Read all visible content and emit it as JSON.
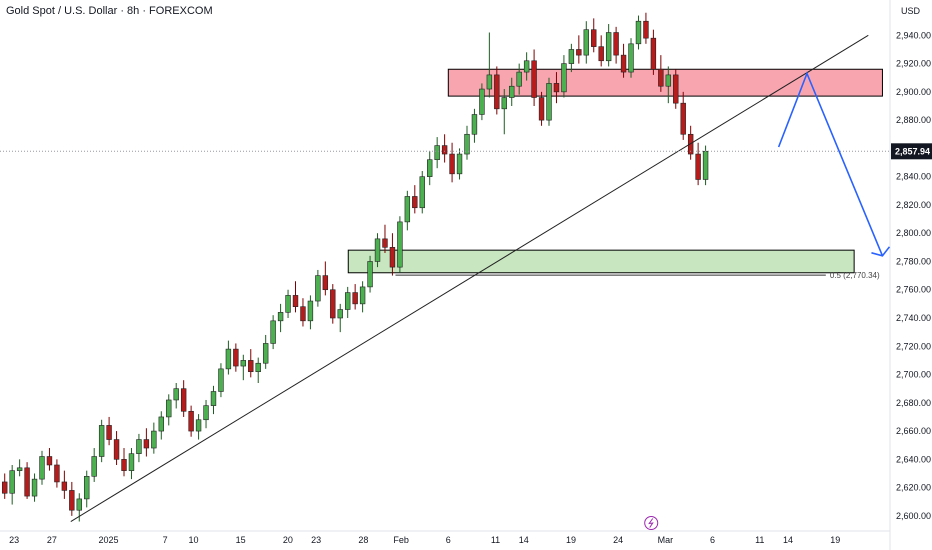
{
  "header": {
    "title": "Gold Spot / U.S. Dollar · 8h · FOREXCOM"
  },
  "price_axis": {
    "currency": "USD"
  },
  "current_price": {
    "label": "2,857.94",
    "value": 2857.94,
    "color": "#131722"
  },
  "colors": {
    "up": "#26a69a",
    "up_fill": "#4caf50",
    "down": "#b71c1c",
    "resistance_fill": "#f8a5b0",
    "support_fill": "#c8e6c0",
    "projection": "#2962ff"
  },
  "fib_label": {
    "text": "0.5 (2,770.34)",
    "value": 2770.34
  },
  "chart_data": {
    "type": "candlestick",
    "y_ticks": [
      "2,940.00",
      "2,920.00",
      "2,900.00",
      "2,880.00",
      "2,860.00",
      "2,840.00",
      "2,820.00",
      "2,800.00",
      "2,780.00",
      "2,760.00",
      "2,740.00",
      "2,720.00",
      "2,700.00",
      "2,680.00",
      "2,660.00",
      "2,640.00",
      "2,620.00",
      "2,600.00"
    ],
    "y_tick_values": [
      2940,
      2920,
      2900,
      2880,
      2860,
      2840,
      2820,
      2800,
      2780,
      2760,
      2740,
      2720,
      2700,
      2680,
      2660,
      2640,
      2620,
      2600
    ],
    "ylim": [
      2590,
      2965
    ],
    "x_ticks": [
      "23",
      "27",
      "2025",
      "7",
      "10",
      "15",
      "20",
      "23",
      "28",
      "Feb",
      "6",
      "11",
      "14",
      "19",
      "24",
      "Mar",
      "6",
      "11",
      "14",
      "19"
    ],
    "x_tick_days": [
      -9,
      -5,
      1,
      7,
      10,
      15,
      20,
      23,
      28,
      32,
      37,
      42,
      45,
      50,
      55,
      60,
      65,
      70,
      73,
      78
    ],
    "date_axis_note": "x values are days relative to 2024-12-31",
    "resistance_zone": {
      "y_low": 2897,
      "y_high": 2916,
      "x_start": 37.0,
      "x_end": 83.0
    },
    "support_zone": {
      "y_low": 2772,
      "y_high": 2788,
      "x_start": 26.4,
      "x_end": 80.0
    },
    "trendline": {
      "x1": -3.0,
      "y1": 2596,
      "x2": 81.5,
      "y2": 2940
    },
    "projection_path": [
      [
        72.0,
        2861
      ],
      [
        75.0,
        2913
      ],
      [
        83.0,
        2784
      ]
    ],
    "candles": [
      [
        2624,
        2630,
        2612,
        2616
      ],
      [
        2616,
        2636,
        2608,
        2632
      ],
      [
        2632,
        2640,
        2628,
        2634
      ],
      [
        2634,
        2638,
        2612,
        2614
      ],
      [
        2614,
        2630,
        2610,
        2626
      ],
      [
        2626,
        2646,
        2622,
        2642
      ],
      [
        2642,
        2648,
        2632,
        2636
      ],
      [
        2636,
        2640,
        2620,
        2624
      ],
      [
        2624,
        2632,
        2612,
        2618
      ],
      [
        2618,
        2624,
        2600,
        2604
      ],
      [
        2604,
        2616,
        2596,
        2612
      ],
      [
        2612,
        2632,
        2606,
        2628
      ],
      [
        2628,
        2648,
        2624,
        2642
      ],
      [
        2642,
        2668,
        2638,
        2664
      ],
      [
        2664,
        2670,
        2650,
        2654
      ],
      [
        2654,
        2660,
        2636,
        2640
      ],
      [
        2640,
        2648,
        2628,
        2632
      ],
      [
        2632,
        2648,
        2626,
        2644
      ],
      [
        2644,
        2658,
        2638,
        2654
      ],
      [
        2654,
        2662,
        2642,
        2648
      ],
      [
        2648,
        2666,
        2644,
        2660
      ],
      [
        2660,
        2674,
        2654,
        2670
      ],
      [
        2670,
        2686,
        2664,
        2682
      ],
      [
        2682,
        2694,
        2676,
        2690
      ],
      [
        2690,
        2696,
        2670,
        2674
      ],
      [
        2674,
        2678,
        2656,
        2660
      ],
      [
        2660,
        2672,
        2654,
        2668
      ],
      [
        2668,
        2682,
        2662,
        2678
      ],
      [
        2678,
        2692,
        2672,
        2688
      ],
      [
        2688,
        2708,
        2684,
        2704
      ],
      [
        2704,
        2724,
        2700,
        2718
      ],
      [
        2718,
        2722,
        2702,
        2706
      ],
      [
        2706,
        2714,
        2696,
        2710
      ],
      [
        2710,
        2718,
        2698,
        2702
      ],
      [
        2702,
        2712,
        2694,
        2708
      ],
      [
        2708,
        2728,
        2704,
        2722
      ],
      [
        2722,
        2742,
        2718,
        2738
      ],
      [
        2738,
        2750,
        2730,
        2744
      ],
      [
        2744,
        2760,
        2740,
        2756
      ],
      [
        2756,
        2766,
        2744,
        2748
      ],
      [
        2748,
        2754,
        2734,
        2738
      ],
      [
        2738,
        2756,
        2732,
        2752
      ],
      [
        2752,
        2774,
        2748,
        2770
      ],
      [
        2770,
        2780,
        2756,
        2760
      ],
      [
        2760,
        2764,
        2736,
        2740
      ],
      [
        2740,
        2750,
        2730,
        2746
      ],
      [
        2746,
        2762,
        2740,
        2758
      ],
      [
        2758,
        2764,
        2746,
        2750
      ],
      [
        2750,
        2766,
        2744,
        2762
      ],
      [
        2762,
        2784,
        2758,
        2780
      ],
      [
        2780,
        2800,
        2776,
        2796
      ],
      [
        2796,
        2806,
        2786,
        2790
      ],
      [
        2790,
        2800,
        2770,
        2776
      ],
      [
        2776,
        2812,
        2772,
        2808
      ],
      [
        2808,
        2830,
        2802,
        2826
      ],
      [
        2826,
        2834,
        2814,
        2818
      ],
      [
        2818,
        2844,
        2814,
        2840
      ],
      [
        2840,
        2858,
        2834,
        2852
      ],
      [
        2852,
        2868,
        2846,
        2862
      ],
      [
        2862,
        2870,
        2850,
        2856
      ],
      [
        2856,
        2864,
        2836,
        2842
      ],
      [
        2842,
        2860,
        2838,
        2856
      ],
      [
        2856,
        2876,
        2852,
        2870
      ],
      [
        2870,
        2888,
        2864,
        2884
      ],
      [
        2884,
        2906,
        2880,
        2902
      ],
      [
        2902,
        2942,
        2896,
        2912
      ],
      [
        2912,
        2918,
        2884,
        2888
      ],
      [
        2888,
        2902,
        2870,
        2896
      ],
      [
        2896,
        2910,
        2890,
        2904
      ],
      [
        2904,
        2920,
        2898,
        2914
      ],
      [
        2914,
        2928,
        2908,
        2922
      ],
      [
        2922,
        2930,
        2890,
        2896
      ],
      [
        2896,
        2900,
        2876,
        2880
      ],
      [
        2880,
        2910,
        2876,
        2906
      ],
      [
        2906,
        2914,
        2892,
        2900
      ],
      [
        2900,
        2926,
        2896,
        2920
      ],
      [
        2920,
        2934,
        2914,
        2930
      ],
      [
        2930,
        2940,
        2920,
        2926
      ],
      [
        2926,
        2950,
        2920,
        2944
      ],
      [
        2944,
        2952,
        2928,
        2932
      ],
      [
        2932,
        2940,
        2918,
        2922
      ],
      [
        2922,
        2948,
        2918,
        2942
      ],
      [
        2942,
        2946,
        2920,
        2926
      ],
      [
        2926,
        2934,
        2910,
        2914
      ],
      [
        2914,
        2938,
        2910,
        2934
      ],
      [
        2934,
        2954,
        2930,
        2950
      ],
      [
        2950,
        2956,
        2934,
        2938
      ],
      [
        2938,
        2944,
        2912,
        2916
      ],
      [
        2916,
        2926,
        2900,
        2904
      ],
      [
        2904,
        2918,
        2892,
        2912
      ],
      [
        2912,
        2916,
        2888,
        2892
      ],
      [
        2892,
        2900,
        2866,
        2870
      ],
      [
        2870,
        2876,
        2852,
        2856
      ],
      [
        2856,
        2864,
        2834,
        2838
      ],
      [
        2838,
        2862,
        2834,
        2858
      ]
    ],
    "candle_x_start": -10.0,
    "candle_x_step": 0.79
  }
}
